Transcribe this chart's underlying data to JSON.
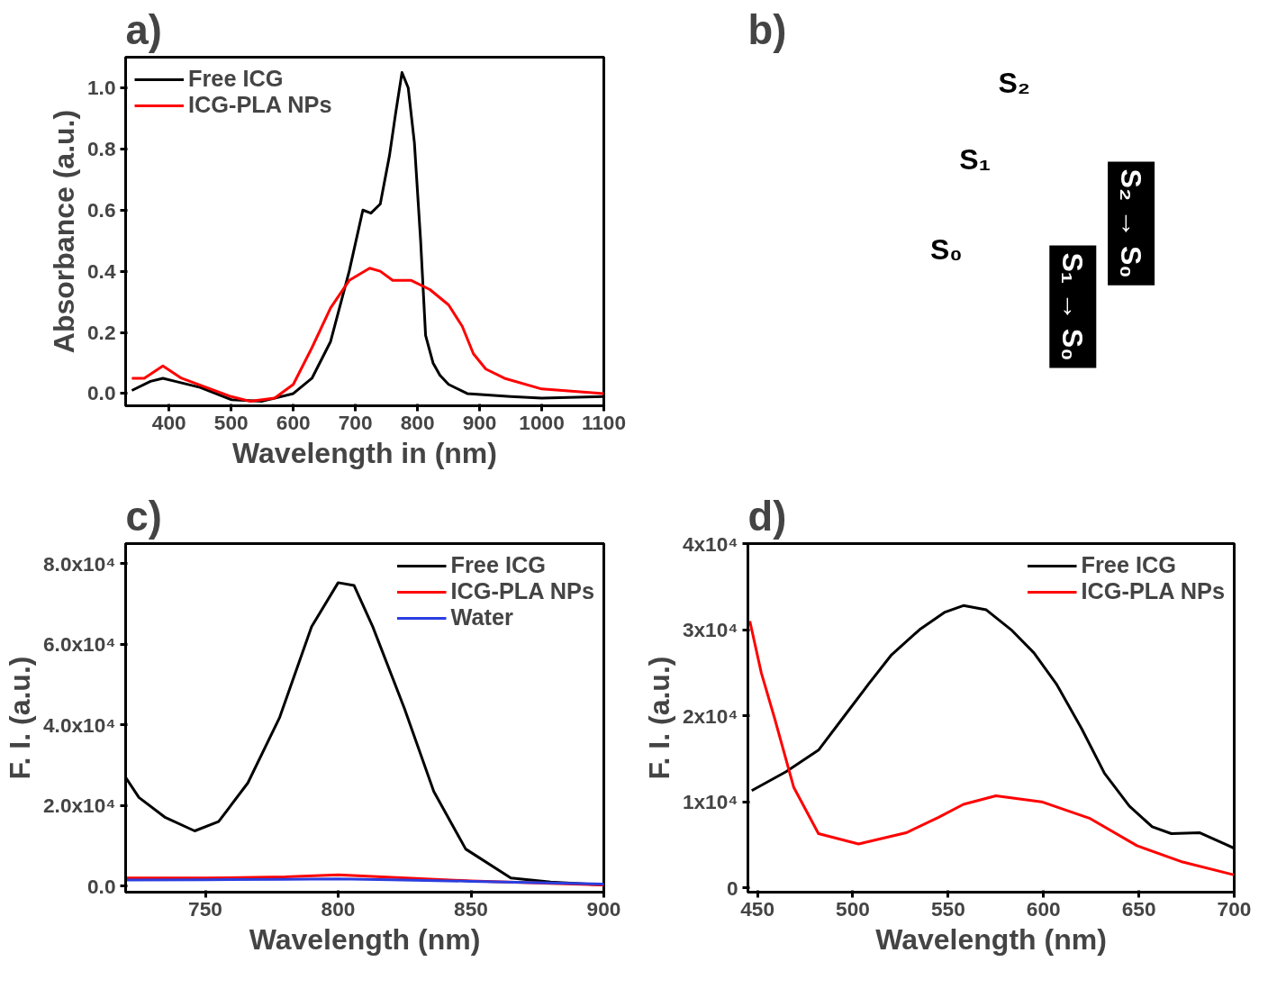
{
  "chart_data": [
    {
      "type": "line",
      "title": "a)",
      "xlabel": "Wavelength in (nm)",
      "ylabel": "Absorbance (a.u.)",
      "legend": "top left",
      "grid": false,
      "xlim": [
        330,
        1100
      ],
      "ylim": [
        -0.04,
        1.1
      ],
      "xticks": [
        400,
        500,
        600,
        700,
        800,
        900,
        1000,
        1100
      ],
      "yticks": [
        {
          "value": 0,
          "label": "0.0"
        },
        {
          "value": 0.2,
          "label": "0.2"
        },
        {
          "value": 0.4,
          "label": "0.4"
        },
        {
          "value": 0.6,
          "label": "0.6"
        },
        {
          "value": 0.8,
          "label": "0.8"
        },
        {
          "value": 1.0,
          "label": "1.0"
        }
      ],
      "series": [
        {
          "name": "Free ICG",
          "color": "#000000",
          "x": [
            340,
            370,
            390,
            410,
            450,
            500,
            550,
            600,
            630,
            660,
            690,
            712,
            725,
            740,
            755,
            765,
            775,
            785,
            795,
            805,
            813,
            825,
            836,
            850,
            880,
            950,
            1000,
            1100
          ],
          "values": [
            0.01,
            0.04,
            0.05,
            0.04,
            0.02,
            -0.02,
            -0.025,
            0.0,
            0.05,
            0.17,
            0.4,
            0.6,
            0.59,
            0.62,
            0.78,
            0.92,
            1.05,
            1.0,
            0.82,
            0.5,
            0.19,
            0.1,
            0.06,
            0.03,
            0.0,
            -0.01,
            -0.015,
            -0.01
          ]
        },
        {
          "name": "ICG-PLA NPs",
          "color": "#ff0000",
          "x": [
            340,
            360,
            390,
            420,
            460,
            500,
            530,
            570,
            600,
            630,
            660,
            690,
            723,
            740,
            760,
            790,
            820,
            850,
            872,
            890,
            910,
            940,
            1000,
            1100
          ],
          "values": [
            0.05,
            0.05,
            0.09,
            0.05,
            0.02,
            -0.01,
            -0.025,
            -0.015,
            0.03,
            0.15,
            0.28,
            0.37,
            0.41,
            0.4,
            0.37,
            0.37,
            0.34,
            0.29,
            0.22,
            0.13,
            0.08,
            0.05,
            0.015,
            0.0
          ]
        }
      ]
    },
    {
      "type": "other",
      "title": "b)",
      "annotations": [
        "S₂",
        "S₁",
        "S₀",
        "S₂ → S₀",
        "S₁ → S₀"
      ]
    },
    {
      "type": "line",
      "title": "c)",
      "xlabel": "Wavelength (nm)",
      "ylabel": "F. I. (a.u.)",
      "legend": "top right",
      "grid": false,
      "xlim": [
        720,
        900
      ],
      "ylim": [
        -1500,
        85000
      ],
      "xticks": [
        750,
        800,
        850,
        900
      ],
      "yticks": [
        {
          "value": 0,
          "label": "0.0"
        },
        {
          "value": 20000,
          "label": "2.0x10⁴"
        },
        {
          "value": 40000,
          "label": "4.0x10⁴"
        },
        {
          "value": 60000,
          "label": "6.0x10⁴"
        },
        {
          "value": 80000,
          "label": "8.0x10⁴"
        }
      ],
      "series": [
        {
          "name": "Free ICG",
          "color": "#000000",
          "x": [
            720,
            725,
            735,
            746,
            755,
            766,
            778,
            790,
            800,
            806,
            813,
            825,
            836,
            848,
            865,
            880,
            900
          ],
          "values": [
            27000,
            22000,
            17000,
            13700,
            16000,
            25600,
            41900,
            64400,
            75300,
            74600,
            64400,
            44000,
            23500,
            9200,
            2000,
            1000,
            300
          ]
        },
        {
          "name": "ICG-PLA NPs",
          "color": "#ff0000",
          "x": [
            720,
            750,
            780,
            800,
            820,
            850,
            880,
            900
          ],
          "values": [
            2000,
            2000,
            2300,
            2800,
            2200,
            1300,
            700,
            300
          ]
        },
        {
          "name": "Water",
          "color": "#2a3fe0",
          "x": [
            720,
            750,
            780,
            800,
            820,
            850,
            880,
            900
          ],
          "values": [
            1500,
            1600,
            1700,
            1800,
            1600,
            1200,
            800,
            500
          ]
        }
      ]
    },
    {
      "type": "line",
      "title": "d)",
      "xlabel": "Wavelength (nm)",
      "ylabel": "F. I. (a.u.)",
      "legend": "top right",
      "grid": false,
      "xlim": [
        445,
        700
      ],
      "ylim": [
        -500,
        40000
      ],
      "xticks": [
        450,
        500,
        550,
        600,
        650,
        700
      ],
      "yticks": [
        {
          "value": 0,
          "label": "0"
        },
        {
          "value": 10000,
          "label": "1x10⁴"
        },
        {
          "value": 20000,
          "label": "2x10⁴"
        },
        {
          "value": 30000,
          "label": "3x10⁴"
        },
        {
          "value": 40000,
          "label": "4x10⁴"
        }
      ],
      "series": [
        {
          "name": "Free ICG",
          "color": "#000000",
          "x": [
            447,
            465,
            482,
            495,
            508,
            520,
            535,
            548,
            558,
            570,
            583,
            595,
            607,
            620,
            632,
            645,
            657,
            667,
            682,
            696,
            700
          ],
          "values": [
            11300,
            13500,
            16000,
            19800,
            23600,
            27000,
            30000,
            32000,
            32800,
            32300,
            30000,
            27300,
            23600,
            18500,
            13300,
            9500,
            7100,
            6300,
            6400,
            5000,
            4600
          ]
        },
        {
          "name": "ICG-PLA NPs",
          "color": "#ff0000",
          "x": [
            446,
            452,
            459,
            469,
            482,
            503,
            528,
            545,
            558,
            575,
            599,
            624,
            649,
            673,
            700
          ],
          "values": [
            31000,
            25000,
            19700,
            11700,
            6300,
            5100,
            6400,
            8200,
            9700,
            10700,
            10000,
            8100,
            4900,
            3000,
            1500
          ]
        }
      ]
    }
  ]
}
